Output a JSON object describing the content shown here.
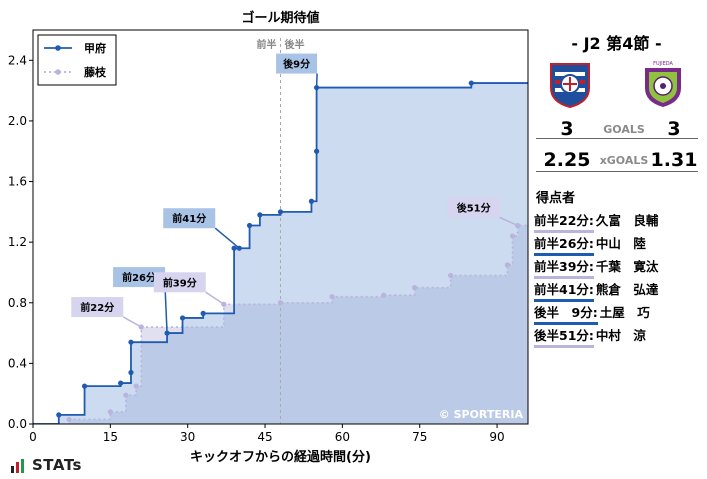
{
  "chart_data": {
    "type": "line",
    "title": "ゴール期待値",
    "xlabel": "キックオフからの経過時間(分)",
    "ylabel": "",
    "xlim": [
      0,
      96
    ],
    "ylim": [
      0,
      2.6
    ],
    "xticks": [
      0,
      15,
      30,
      45,
      60,
      75,
      90
    ],
    "yticks": [
      0.0,
      0.4,
      0.8,
      1.2,
      1.6,
      2.0,
      2.4
    ],
    "half_time_marker": 48,
    "half_labels": [
      "前半",
      "後半"
    ],
    "legend_position": "top-left",
    "grid": false,
    "watermark": "© SPORTERIA",
    "series": [
      {
        "name": "甲府",
        "color": "#1f5bb0",
        "fill": "#8fb0dc",
        "style": "solid",
        "points": [
          [
            0,
            0
          ],
          [
            5,
            0.06
          ],
          [
            10,
            0.25
          ],
          [
            17,
            0.27
          ],
          [
            19,
            0.34
          ],
          [
            19,
            0.54
          ],
          [
            26,
            0.6
          ],
          [
            29,
            0.7
          ],
          [
            33,
            0.73
          ],
          [
            39,
            1.16
          ],
          [
            40,
            1.16
          ],
          [
            42,
            1.31
          ],
          [
            44,
            1.38
          ],
          [
            48,
            1.4
          ],
          [
            54,
            1.47
          ],
          [
            55,
            1.8
          ],
          [
            55,
            2.22
          ],
          [
            85,
            2.25
          ],
          [
            96,
            2.25
          ]
        ]
      },
      {
        "name": "藤枝",
        "color": "#b8b4dc",
        "fill": "#c9c6e6",
        "style": "dotted",
        "points": [
          [
            0,
            0
          ],
          [
            7,
            0.03
          ],
          [
            15,
            0.08
          ],
          [
            18,
            0.19
          ],
          [
            20,
            0.25
          ],
          [
            21,
            0.64
          ],
          [
            37,
            0.79
          ],
          [
            48,
            0.8
          ],
          [
            58,
            0.84
          ],
          [
            68,
            0.85
          ],
          [
            74,
            0.9
          ],
          [
            81,
            0.98
          ],
          [
            92,
            1.05
          ],
          [
            93,
            1.24
          ],
          [
            94,
            1.31
          ],
          [
            96,
            1.31
          ]
        ]
      }
    ],
    "annotations": [
      {
        "text": "前22分",
        "series": 1,
        "x": 21,
        "y": 0.64
      },
      {
        "text": "前26分",
        "series": 0,
        "x": 26,
        "y": 0.6
      },
      {
        "text": "前39分",
        "series": 1,
        "x": 37,
        "y": 0.79
      },
      {
        "text": "前41分",
        "series": 0,
        "x": 40,
        "y": 1.16
      },
      {
        "text": "後9分",
        "series": 0,
        "x": 55,
        "y": 2.22
      },
      {
        "text": "後51分",
        "series": 1,
        "x": 94,
        "y": 1.31
      }
    ]
  },
  "match": {
    "title": "- J2 第4節 -",
    "home_score": "3",
    "away_score": "3",
    "goals_label": "GOALS",
    "home_xg": "2.25",
    "away_xg": "1.31",
    "xgoals_label": "xGOALS"
  },
  "scorers_title": "得点者",
  "scorers": [
    {
      "time": "前半22分:",
      "player": "久富　良輔",
      "team": "fuji"
    },
    {
      "time": "前半26分:",
      "player": "中山　陸",
      "team": "kofu"
    },
    {
      "time": "前半39分:",
      "player": "千葉　寛汰",
      "team": "fuji"
    },
    {
      "time": "前半41分:",
      "player": "熊倉　弘達",
      "team": "kofu"
    },
    {
      "time": "後半　9分:",
      "player": "土屋　巧",
      "team": "kofu"
    },
    {
      "time": "後半51分:",
      "player": "中村　涼",
      "team": "fuji"
    }
  ],
  "brand": "STATs",
  "crests": [
    "kofu-crest-icon",
    "fujieda-crest-icon"
  ],
  "fujieda_crest_text": "FUJIEDA"
}
